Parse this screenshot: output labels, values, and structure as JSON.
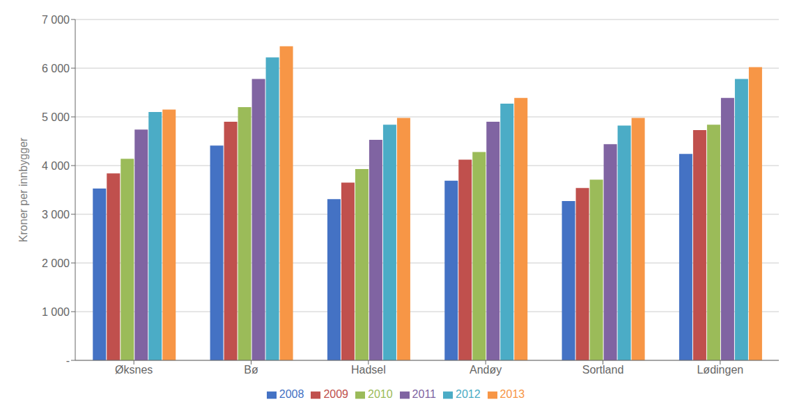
{
  "chart_data": {
    "type": "bar",
    "ylabel": "Kroner per innbygger",
    "categories": [
      "Øksnes",
      "Bø",
      "Hadsel",
      "Andøy",
      "Sortland",
      "Lødingen"
    ],
    "series": [
      {
        "name": "2008",
        "color": "#4472c4",
        "values": [
          3530,
          4410,
          3310,
          3690,
          3270,
          4240
        ]
      },
      {
        "name": "2009",
        "color": "#c0504d",
        "values": [
          3840,
          4900,
          3650,
          4120,
          3540,
          4730
        ]
      },
      {
        "name": "2010",
        "color": "#9bbb59",
        "values": [
          4140,
          5200,
          3930,
          4280,
          3710,
          4840
        ]
      },
      {
        "name": "2011",
        "color": "#8064a2",
        "values": [
          4740,
          5780,
          4530,
          4900,
          4440,
          5390
        ]
      },
      {
        "name": "2012",
        "color": "#4bacc6",
        "values": [
          5100,
          6220,
          4840,
          5270,
          4820,
          5780
        ]
      },
      {
        "name": "2013",
        "color": "#f79646",
        "values": [
          5150,
          6450,
          4980,
          5390,
          4980,
          6020
        ]
      }
    ],
    "ylim": [
      0,
      7000
    ],
    "yticks": [
      {
        "value": 0,
        "label": "-"
      },
      {
        "value": 1000,
        "label": "1 000"
      },
      {
        "value": 2000,
        "label": "2 000"
      },
      {
        "value": 3000,
        "label": "3 000"
      },
      {
        "value": 4000,
        "label": "4 000"
      },
      {
        "value": 5000,
        "label": "5 000"
      },
      {
        "value": 6000,
        "label": "6 000"
      },
      {
        "value": 7000,
        "label": "7 000"
      }
    ],
    "grid": true,
    "legend": "bottom"
  }
}
